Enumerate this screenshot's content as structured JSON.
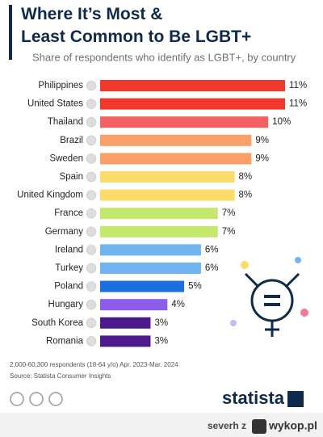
{
  "chart_data": {
    "type": "bar",
    "orientation": "horizontal",
    "title": "Where It’s Most & Least Common to Be LGBT+",
    "subtitle": "Share of respondents who identify as LGBT+, by country",
    "categories": [
      "Philippines",
      "United States",
      "Thailand",
      "Brazil",
      "Sweden",
      "Spain",
      "United Kingdom",
      "France",
      "Germany",
      "Ireland",
      "Turkey",
      "Poland",
      "Hungary",
      "South Korea",
      "Romania"
    ],
    "values": [
      11,
      11,
      10,
      9,
      9,
      8,
      8,
      7,
      7,
      6,
      6,
      5,
      4,
      3,
      3
    ],
    "value_labels": [
      "11%",
      "11%",
      "10%",
      "9%",
      "9%",
      "8%",
      "8%",
      "7%",
      "7%",
      "6%",
      "6%",
      "5%",
      "4%",
      "3%",
      "3%"
    ],
    "colors": [
      "#f0382b",
      "#f0382b",
      "#f26262",
      "#f9a068",
      "#f9a068",
      "#fbdb6a",
      "#fbdb6a",
      "#c3e86b",
      "#c3e86b",
      "#70b4f0",
      "#70b4f0",
      "#1c6fde",
      "#8b5de8",
      "#4c1a8c",
      "#4c1a8c"
    ],
    "note": "2,000-60,300 respondents (18-64 y/o) Apr. 2023-Mar. 2024",
    "source": "Source: Statista Consumer Insights",
    "brand": "statista"
  },
  "watermark": {
    "user": "severh z",
    "site": "wykop.pl"
  }
}
